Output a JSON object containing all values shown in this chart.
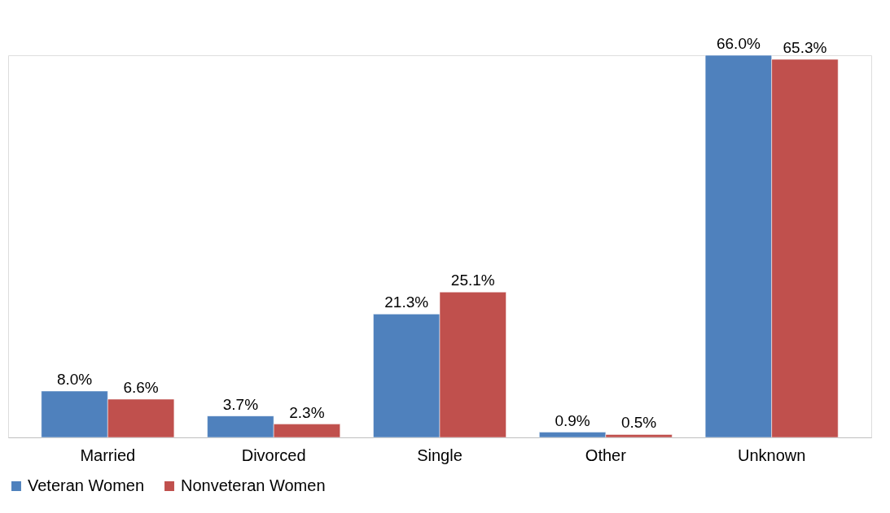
{
  "chart_data": {
    "type": "bar",
    "categories": [
      "Married",
      "Divorced",
      "Single",
      "Other",
      "Unknown"
    ],
    "series": [
      {
        "name": "Veteran Women",
        "color": "#4f81bd",
        "values": [
          8.0,
          3.7,
          21.3,
          0.9,
          66.0
        ],
        "value_labels": [
          "8.0%",
          "3.7%",
          "21.3%",
          "0.9%",
          "66.0%"
        ]
      },
      {
        "name": "Nonveteran Women",
        "color": "#c0504d",
        "values": [
          6.6,
          2.3,
          25.1,
          0.5,
          65.3
        ],
        "value_labels": [
          "6.6%",
          "2.3%",
          "25.1%",
          "0.5%",
          "65.3%"
        ]
      }
    ],
    "legend": "bottom",
    "grid": false
  }
}
